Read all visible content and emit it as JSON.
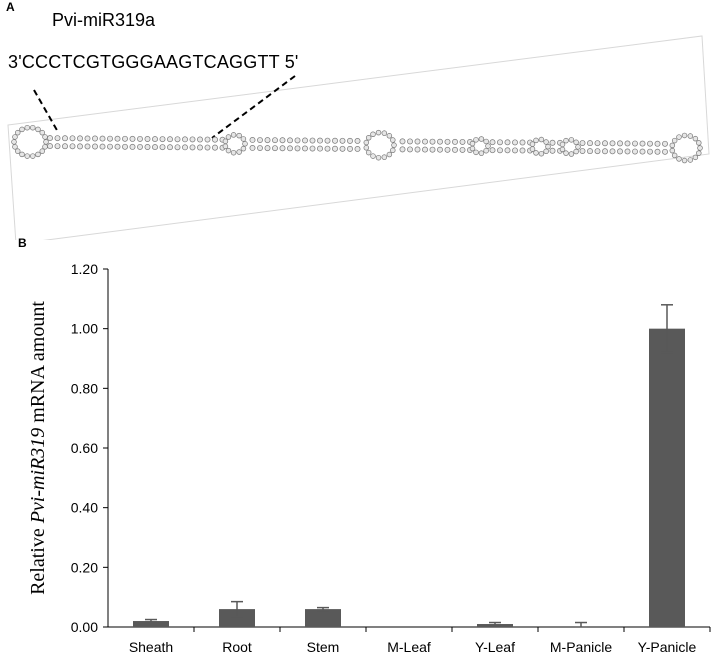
{
  "panel_a": {
    "label": "A",
    "mirna_name": "Pvi-miR319a",
    "sequence": "3'CCCTCGTGGGAAGTCAGGTT 5'"
  },
  "panel_b": {
    "label": "B"
  },
  "chart_data": {
    "type": "bar",
    "categories": [
      "Sheath",
      "Root",
      "Stem",
      "M-Leaf",
      "Y-Leaf",
      "M-Panicle",
      "Y-Panicle"
    ],
    "values": [
      0.02,
      0.06,
      0.06,
      0.0,
      0.01,
      0.0,
      1.0
    ],
    "errors": [
      0.005,
      0.025,
      0.005,
      0.0,
      0.005,
      0.015,
      0.08
    ],
    "ylabel_prefix": "Relative ",
    "ylabel_italic": "Pvi-miR319",
    "ylabel_suffix": " mRNA amount",
    "ylim": [
      0,
      1.2
    ],
    "yticks": [
      "0.00",
      "0.20",
      "0.40",
      "0.60",
      "0.80",
      "1.00",
      "1.20"
    ],
    "bar_color": "#595959",
    "grid": false
  }
}
